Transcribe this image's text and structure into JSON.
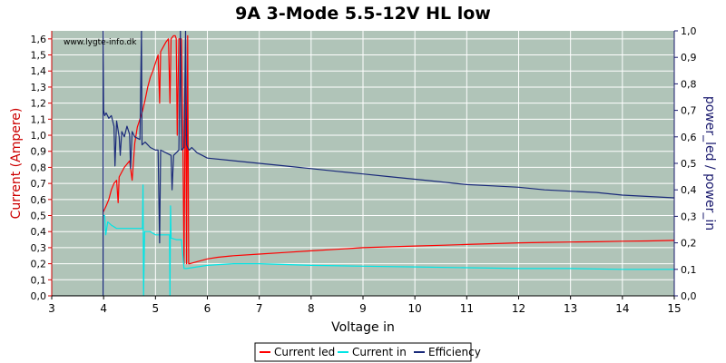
{
  "chart_data": {
    "type": "line",
    "title": "9A 3-Mode 5.5-12V HL low",
    "watermark": "www.lygte-info.dk",
    "xlabel": "Voltage in",
    "ylabel_left": "Current (Ampere)",
    "ylabel_right": "power_led / power_in",
    "xlim": [
      3,
      15
    ],
    "ylim_left": [
      0,
      1.65
    ],
    "ylim_right": [
      0,
      1.0
    ],
    "x_ticks": [
      "3",
      "4",
      "5",
      "6",
      "7",
      "8",
      "9",
      "10",
      "11",
      "12",
      "13",
      "14",
      "15"
    ],
    "y_left_ticks": [
      "0,0",
      "0,1",
      "0,2",
      "0,3",
      "0,4",
      "0,5",
      "0,6",
      "0,7",
      "0,8",
      "0,9",
      "1,0",
      "1,1",
      "1,2",
      "1,3",
      "1,4",
      "1,5",
      "1,6"
    ],
    "y_right_ticks": [
      "0,0",
      "0,1",
      "0,2",
      "0,3",
      "0,4",
      "0,5",
      "0,6",
      "0,7",
      "0,8",
      "0,9",
      "1,0"
    ],
    "grid": true,
    "legend_position": "bottom",
    "colors": {
      "plot_bg": "#b0c4b8",
      "grid": "#ffffff",
      "left_axis": "#cc0000",
      "right_axis": "#1a1a6e"
    },
    "series": [
      {
        "name": "Current led",
        "axis": "left",
        "color": "#ff0000",
        "points": [
          [
            3.0,
            0.0
          ],
          [
            3.99,
            0.0
          ],
          [
            3.99,
            0.52
          ],
          [
            4.05,
            0.56
          ],
          [
            4.1,
            0.6
          ],
          [
            4.15,
            0.66
          ],
          [
            4.2,
            0.7
          ],
          [
            4.25,
            0.72
          ],
          [
            4.28,
            0.58
          ],
          [
            4.3,
            0.74
          ],
          [
            4.4,
            0.8
          ],
          [
            4.45,
            0.82
          ],
          [
            4.5,
            0.84
          ],
          [
            4.55,
            0.72
          ],
          [
            4.6,
            0.95
          ],
          [
            4.65,
            1.05
          ],
          [
            4.7,
            1.1
          ],
          [
            4.75,
            1.15
          ],
          [
            4.8,
            1.22
          ],
          [
            4.85,
            1.3
          ],
          [
            4.9,
            1.36
          ],
          [
            4.95,
            1.4
          ],
          [
            5.0,
            1.45
          ],
          [
            5.05,
            1.5
          ],
          [
            5.08,
            1.2
          ],
          [
            5.1,
            1.52
          ],
          [
            5.15,
            1.55
          ],
          [
            5.2,
            1.58
          ],
          [
            5.25,
            1.6
          ],
          [
            5.28,
            1.2
          ],
          [
            5.3,
            1.6
          ],
          [
            5.35,
            1.62
          ],
          [
            5.38,
            1.62
          ],
          [
            5.4,
            1.6
          ],
          [
            5.42,
            1.0
          ],
          [
            5.45,
            1.6
          ],
          [
            5.5,
            1.6
          ],
          [
            5.52,
            1.2
          ],
          [
            5.55,
            0.2
          ],
          [
            5.58,
            1.6
          ],
          [
            5.6,
            0.2
          ],
          [
            5.62,
            1.62
          ],
          [
            5.64,
            0.2
          ],
          [
            5.66,
            0.2
          ],
          [
            6.0,
            0.23
          ],
          [
            6.2,
            0.24
          ],
          [
            6.5,
            0.25
          ],
          [
            7.0,
            0.26
          ],
          [
            7.5,
            0.27
          ],
          [
            8.0,
            0.28
          ],
          [
            8.5,
            0.29
          ],
          [
            9.0,
            0.3
          ],
          [
            9.5,
            0.305
          ],
          [
            10.0,
            0.31
          ],
          [
            10.5,
            0.315
          ],
          [
            11.0,
            0.32
          ],
          [
            11.5,
            0.325
          ],
          [
            12.0,
            0.33
          ],
          [
            12.5,
            0.333
          ],
          [
            13.0,
            0.335
          ],
          [
            13.5,
            0.337
          ],
          [
            14.0,
            0.34
          ],
          [
            14.5,
            0.342
          ],
          [
            15.0,
            0.345
          ]
        ]
      },
      {
        "name": "Current in",
        "axis": "left",
        "color": "#00e5e5",
        "points": [
          [
            3.0,
            0.0
          ],
          [
            3.99,
            0.0
          ],
          [
            3.99,
            0.5
          ],
          [
            4.02,
            0.5
          ],
          [
            4.04,
            0.38
          ],
          [
            4.08,
            0.46
          ],
          [
            4.15,
            0.44
          ],
          [
            4.25,
            0.42
          ],
          [
            4.35,
            0.42
          ],
          [
            4.5,
            0.42
          ],
          [
            4.6,
            0.42
          ],
          [
            4.7,
            0.42
          ],
          [
            4.75,
            0.42
          ],
          [
            4.76,
            0.69
          ],
          [
            4.77,
            0.0
          ],
          [
            4.79,
            0.4
          ],
          [
            4.9,
            0.4
          ],
          [
            5.0,
            0.38
          ],
          [
            5.1,
            0.38
          ],
          [
            5.2,
            0.38
          ],
          [
            5.27,
            0.38
          ],
          [
            5.28,
            0.0
          ],
          [
            5.29,
            0.56
          ],
          [
            5.3,
            0.36
          ],
          [
            5.4,
            0.35
          ],
          [
            5.5,
            0.35
          ],
          [
            5.55,
            0.17
          ],
          [
            5.6,
            0.17
          ],
          [
            6.0,
            0.19
          ],
          [
            6.5,
            0.2
          ],
          [
            7.0,
            0.2
          ],
          [
            7.5,
            0.195
          ],
          [
            8.0,
            0.19
          ],
          [
            9.0,
            0.185
          ],
          [
            10.0,
            0.18
          ],
          [
            11.0,
            0.175
          ],
          [
            12.0,
            0.17
          ],
          [
            13.0,
            0.17
          ],
          [
            14.0,
            0.165
          ],
          [
            15.0,
            0.165
          ]
        ]
      },
      {
        "name": "Efficiency",
        "axis": "right",
        "color": "#1a2a7a",
        "points": [
          [
            3.99,
            0.0
          ],
          [
            3.99,
            1.0
          ],
          [
            4.0,
            0.7
          ],
          [
            4.02,
            0.68
          ],
          [
            4.05,
            0.69
          ],
          [
            4.1,
            0.67
          ],
          [
            4.15,
            0.68
          ],
          [
            4.2,
            0.64
          ],
          [
            4.22,
            0.49
          ],
          [
            4.25,
            0.66
          ],
          [
            4.3,
            0.6
          ],
          [
            4.32,
            0.53
          ],
          [
            4.35,
            0.62
          ],
          [
            4.4,
            0.6
          ],
          [
            4.45,
            0.64
          ],
          [
            4.5,
            0.61
          ],
          [
            4.52,
            0.48
          ],
          [
            4.55,
            0.62
          ],
          [
            4.6,
            0.6
          ],
          [
            4.7,
            0.59
          ],
          [
            4.73,
            1.0
          ],
          [
            4.74,
            0.57
          ],
          [
            4.8,
            0.58
          ],
          [
            4.85,
            0.57
          ],
          [
            4.9,
            0.56
          ],
          [
            5.0,
            0.55
          ],
          [
            5.05,
            0.55
          ],
          [
            5.08,
            0.2
          ],
          [
            5.1,
            0.55
          ],
          [
            5.2,
            0.54
          ],
          [
            5.3,
            0.53
          ],
          [
            5.32,
            0.4
          ],
          [
            5.35,
            0.53
          ],
          [
            5.4,
            0.54
          ],
          [
            5.45,
            0.55
          ],
          [
            5.48,
            1.0
          ],
          [
            5.5,
            0.55
          ],
          [
            5.55,
            0.56
          ],
          [
            5.58,
            1.0
          ],
          [
            5.6,
            0.57
          ],
          [
            5.62,
            0.56
          ],
          [
            5.65,
            0.55
          ],
          [
            5.7,
            0.56
          ],
          [
            5.8,
            0.54
          ],
          [
            5.9,
            0.53
          ],
          [
            6.0,
            0.52
          ],
          [
            6.5,
            0.51
          ],
          [
            7.0,
            0.5
          ],
          [
            7.5,
            0.49
          ],
          [
            8.0,
            0.48
          ],
          [
            8.5,
            0.47
          ],
          [
            9.0,
            0.46
          ],
          [
            9.5,
            0.45
          ],
          [
            10.0,
            0.44
          ],
          [
            10.5,
            0.43
          ],
          [
            11.0,
            0.42
          ],
          [
            11.5,
            0.415
          ],
          [
            12.0,
            0.41
          ],
          [
            12.5,
            0.4
          ],
          [
            13.0,
            0.395
          ],
          [
            13.5,
            0.39
          ],
          [
            14.0,
            0.38
          ],
          [
            14.5,
            0.375
          ],
          [
            15.0,
            0.37
          ]
        ]
      }
    ]
  }
}
